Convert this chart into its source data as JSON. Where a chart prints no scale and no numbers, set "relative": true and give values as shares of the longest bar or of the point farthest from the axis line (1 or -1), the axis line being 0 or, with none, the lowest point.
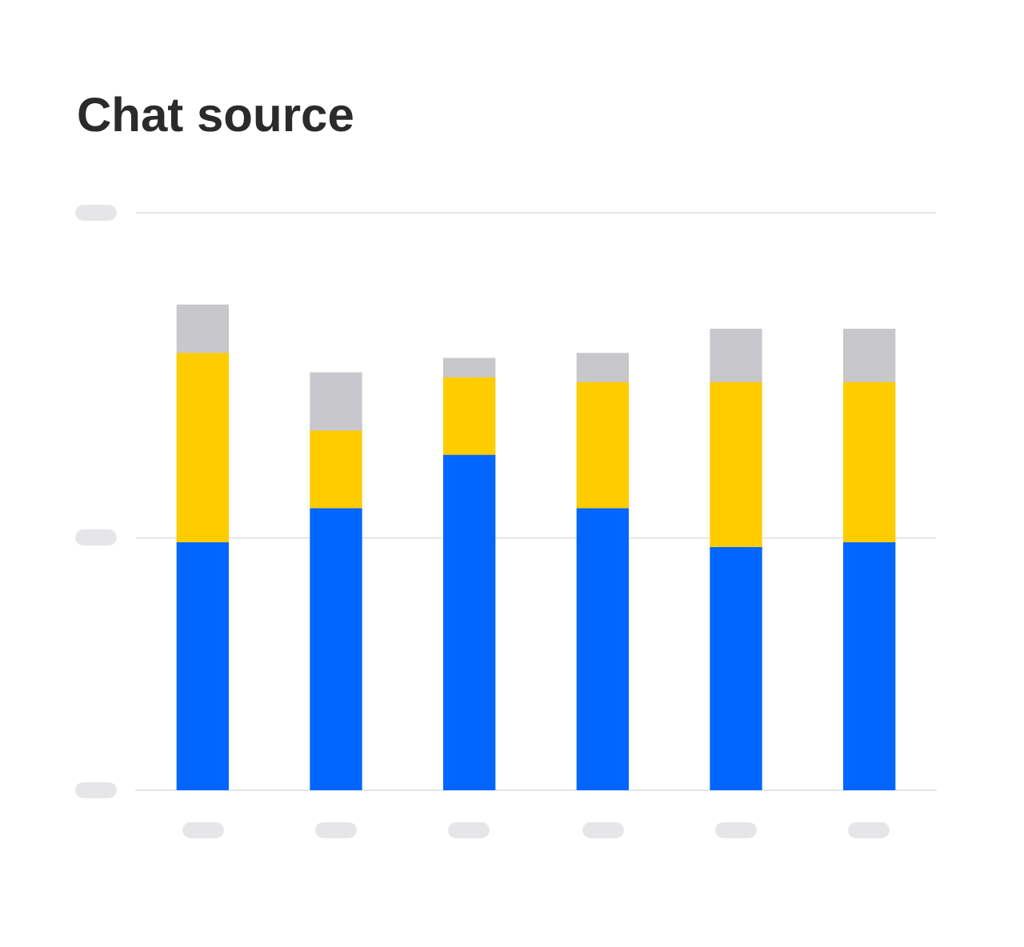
{
  "chart_data": {
    "type": "bar",
    "title": "Chat source",
    "stacked": true,
    "relative": true,
    "legend": false,
    "ref_lines": [
      {
        "axis": "y",
        "value": 0.52,
        "color": "#e6e6e8"
      },
      {
        "axis": "y",
        "value": 1.19,
        "color": "#e6e6e8"
      }
    ],
    "categories": [
      null,
      null,
      null,
      null,
      null,
      null
    ],
    "series": [
      {
        "color": "#0066ff",
        "values": [
          0.51,
          0.58,
          0.69,
          0.58,
          0.5,
          0.51
        ]
      },
      {
        "color": "#ffcc00",
        "values": [
          0.39,
          0.16,
          0.16,
          0.26,
          0.34,
          0.33
        ]
      },
      {
        "color": "#c8c8cc",
        "values": [
          0.1,
          0.12,
          0.04,
          0.06,
          0.11,
          0.11
        ]
      }
    ]
  }
}
